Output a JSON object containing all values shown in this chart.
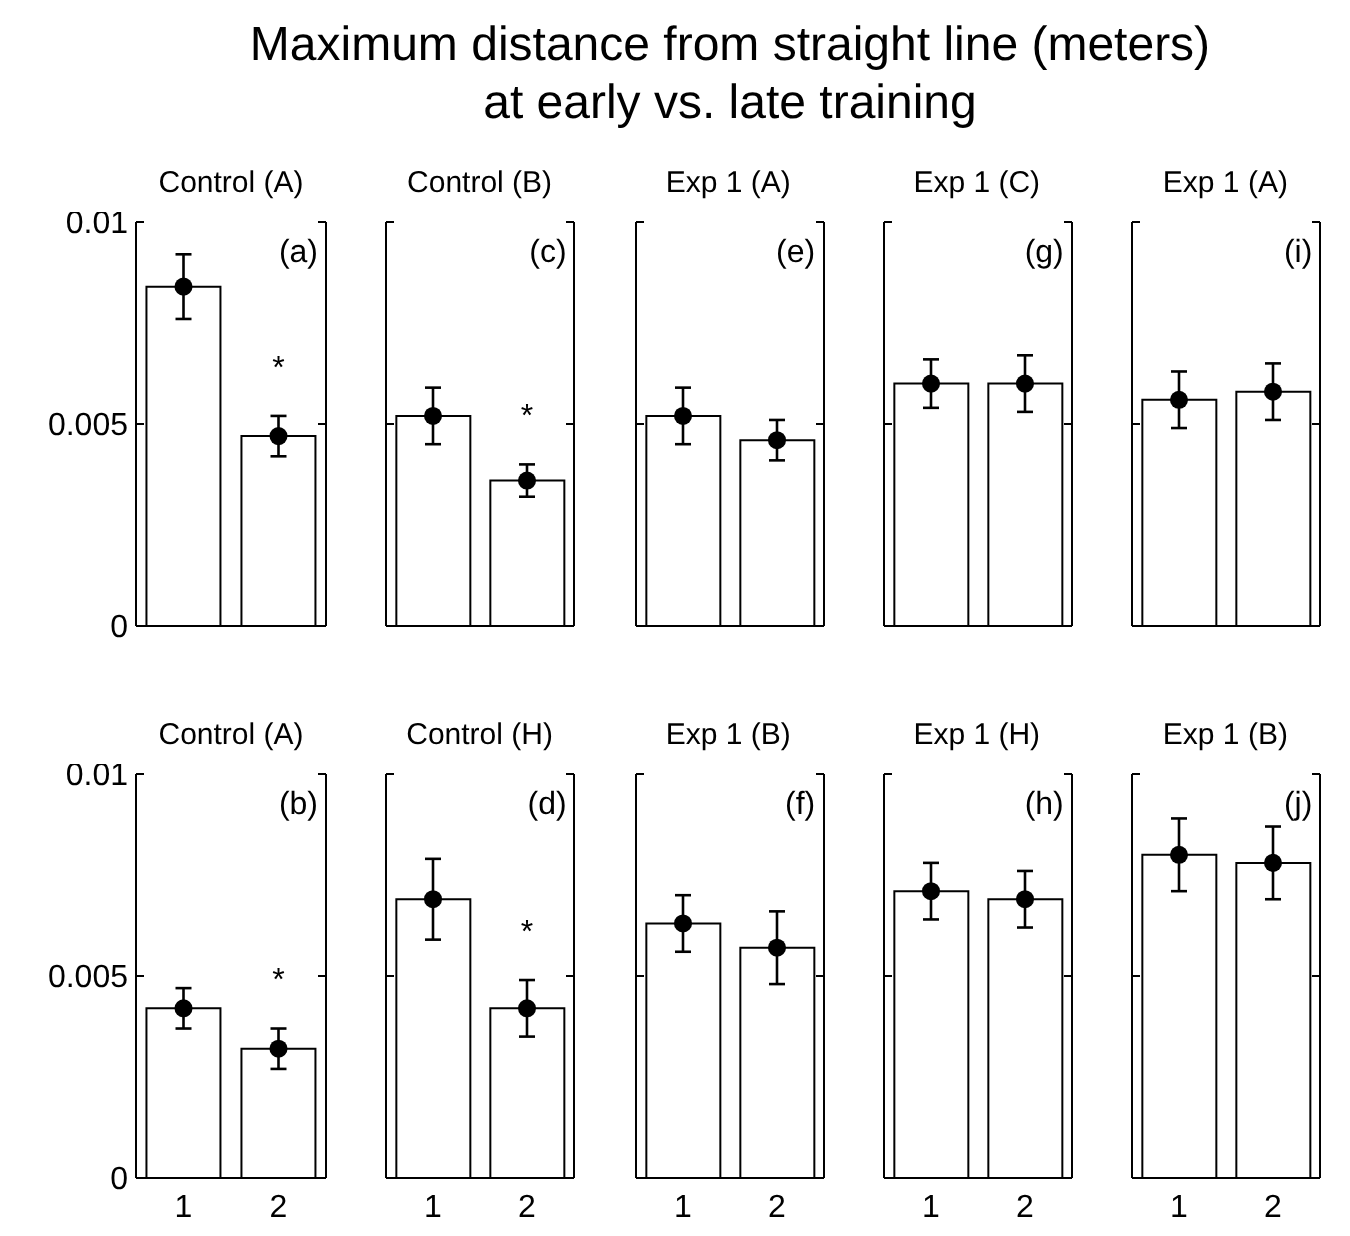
{
  "chart_data": [
    {
      "type": "bar",
      "title": "Maximum distance from straight line (meters) at early vs. late training",
      "subtitle": "Control (A)",
      "categories": [
        "1",
        "2"
      ],
      "ylim": [
        0,
        0.01
      ],
      "yticks": [
        0,
        0.005,
        0.01
      ],
      "tick_labels": "y",
      "annotations": [
        "(a)",
        "*"
      ],
      "series": [
        {
          "color": "#ffffff",
          "values": [
            0.0084,
            0.0047
          ]
        },
        {
          "type": "scatter",
          "color": "#000000",
          "marker": "circle",
          "x": [
            "1",
            "2"
          ],
          "values": [
            0.0084,
            0.0047
          ],
          "errors": [
            0.0008,
            0.0005
          ]
        }
      ]
    },
    {
      "type": "bar",
      "subtitle": "Control (B)",
      "categories": [
        "1",
        "2"
      ],
      "ylim": [
        0,
        0.01
      ],
      "yticks": [
        0,
        0.005,
        0.01
      ],
      "tick_labels": false,
      "annotations": [
        "(c)",
        "*"
      ],
      "series": [
        {
          "color": "#ffffff",
          "values": [
            0.0052,
            0.0036
          ]
        },
        {
          "type": "scatter",
          "color": "#000000",
          "marker": "circle",
          "x": [
            "1",
            "2"
          ],
          "values": [
            0.0052,
            0.0036
          ],
          "errors": [
            0.0007,
            0.0004
          ]
        }
      ]
    },
    {
      "type": "bar",
      "subtitle": "Exp 1 (A)",
      "categories": [
        "1",
        "2"
      ],
      "ylim": [
        0,
        0.01
      ],
      "yticks": [
        0,
        0.005,
        0.01
      ],
      "tick_labels": false,
      "annotations": [
        "(e)"
      ],
      "series": [
        {
          "color": "#ffffff",
          "values": [
            0.0052,
            0.0046
          ]
        },
        {
          "type": "scatter",
          "color": "#000000",
          "marker": "circle",
          "x": [
            "1",
            "2"
          ],
          "values": [
            0.0052,
            0.0046
          ],
          "errors": [
            0.0007,
            0.0005
          ]
        }
      ]
    },
    {
      "type": "bar",
      "subtitle": "Exp 1 (C)",
      "categories": [
        "1",
        "2"
      ],
      "ylim": [
        0,
        0.01
      ],
      "yticks": [
        0,
        0.005,
        0.01
      ],
      "tick_labels": false,
      "annotations": [
        "(g)"
      ],
      "series": [
        {
          "color": "#ffffff",
          "values": [
            0.006,
            0.006
          ]
        },
        {
          "type": "scatter",
          "color": "#000000",
          "marker": "circle",
          "x": [
            "1",
            "2"
          ],
          "values": [
            0.006,
            0.006
          ],
          "errors": [
            0.0006,
            0.0007
          ]
        }
      ]
    },
    {
      "type": "bar",
      "subtitle": "Exp 1 (A)",
      "categories": [
        "1",
        "2"
      ],
      "ylim": [
        0,
        0.01
      ],
      "yticks": [
        0,
        0.005,
        0.01
      ],
      "tick_labels": false,
      "annotations": [
        "(i)"
      ],
      "series": [
        {
          "color": "#ffffff",
          "values": [
            0.0056,
            0.0058
          ]
        },
        {
          "type": "scatter",
          "color": "#000000",
          "marker": "circle",
          "x": [
            "1",
            "2"
          ],
          "values": [
            0.0056,
            0.0058
          ],
          "errors": [
            0.0007,
            0.0007
          ]
        }
      ]
    },
    {
      "type": "bar",
      "subtitle": "Control (A)",
      "categories": [
        "1",
        "2"
      ],
      "ylim": [
        0,
        0.01
      ],
      "yticks": [
        0,
        0.005,
        0.01
      ],
      "annotations": [
        "(b)",
        "*"
      ],
      "series": [
        {
          "color": "#ffffff",
          "values": [
            0.0042,
            0.0032
          ]
        },
        {
          "type": "scatter",
          "color": "#000000",
          "marker": "circle",
          "x": [
            "1",
            "2"
          ],
          "values": [
            0.0042,
            0.0032
          ],
          "errors": [
            0.0005,
            0.0005
          ]
        }
      ]
    },
    {
      "type": "bar",
      "subtitle": "Control (H)",
      "categories": [
        "1",
        "2"
      ],
      "ylim": [
        0,
        0.01
      ],
      "yticks": [
        0,
        0.005,
        0.01
      ],
      "tick_labels": "x",
      "annotations": [
        "(d)",
        "*"
      ],
      "series": [
        {
          "color": "#ffffff",
          "values": [
            0.0069,
            0.0042
          ]
        },
        {
          "type": "scatter",
          "color": "#000000",
          "marker": "circle",
          "x": [
            "1",
            "2"
          ],
          "values": [
            0.0069,
            0.0042
          ],
          "errors": [
            0.001,
            0.0007
          ]
        }
      ]
    },
    {
      "type": "bar",
      "subtitle": "Exp 1 (B)",
      "categories": [
        "1",
        "2"
      ],
      "ylim": [
        0,
        0.01
      ],
      "yticks": [
        0,
        0.005,
        0.01
      ],
      "tick_labels": "x",
      "annotations": [
        "(f)"
      ],
      "series": [
        {
          "color": "#ffffff",
          "values": [
            0.0063,
            0.0057
          ]
        },
        {
          "type": "scatter",
          "color": "#000000",
          "marker": "circle",
          "x": [
            "1",
            "2"
          ],
          "values": [
            0.0063,
            0.0057
          ],
          "errors": [
            0.0007,
            0.0009
          ]
        }
      ]
    },
    {
      "type": "bar",
      "subtitle": "Exp 1 (H)",
      "categories": [
        "1",
        "2"
      ],
      "ylim": [
        0,
        0.01
      ],
      "yticks": [
        0,
        0.005,
        0.01
      ],
      "tick_labels": "x",
      "annotations": [
        "(h)"
      ],
      "series": [
        {
          "color": "#ffffff",
          "values": [
            0.0071,
            0.0069
          ]
        },
        {
          "type": "scatter",
          "color": "#000000",
          "marker": "circle",
          "x": [
            "1",
            "2"
          ],
          "values": [
            0.0071,
            0.0069
          ],
          "errors": [
            0.0007,
            0.0007
          ]
        }
      ]
    },
    {
      "type": "bar",
      "subtitle": "Exp 1 (B)",
      "categories": [
        "1",
        "2"
      ],
      "ylim": [
        0,
        0.01
      ],
      "yticks": [
        0,
        0.005,
        0.01
      ],
      "tick_labels": "x",
      "annotations": [
        "(j)"
      ],
      "series": [
        {
          "color": "#ffffff",
          "values": [
            0.008,
            0.0078
          ]
        },
        {
          "type": "scatter",
          "color": "#000000",
          "marker": "circle",
          "x": [
            "1",
            "2"
          ],
          "values": [
            0.008,
            0.0078
          ],
          "errors": [
            0.0009,
            0.0009
          ]
        }
      ]
    }
  ]
}
